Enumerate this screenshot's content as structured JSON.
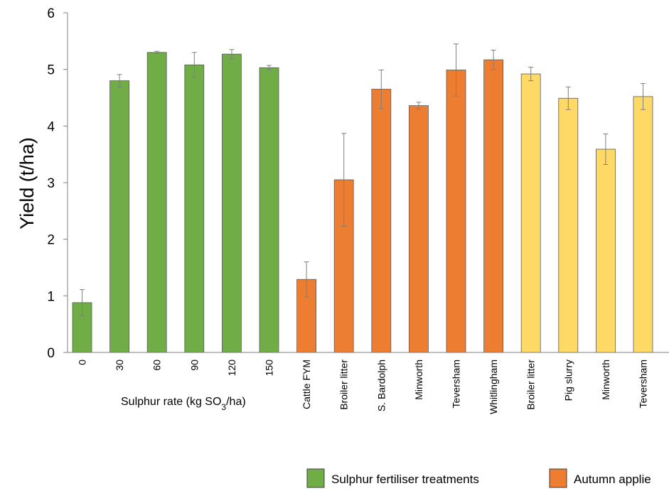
{
  "chart_data": {
    "type": "bar",
    "ylabel": "Yield (t/ha)",
    "xlabel": "",
    "ylim": [
      0,
      6
    ],
    "yticks": [
      "0",
      "1",
      "2",
      "3",
      "4",
      "5",
      "6"
    ],
    "categories": [
      "0",
      "30",
      "60",
      "90",
      "120",
      "150",
      "Cattle FYM",
      "Broiler litter",
      "S. Bardolph",
      "Minworth",
      "Teversham",
      "Whitlingham",
      "Broiler litter",
      "Pig slurry",
      "Minworth",
      "Teversham"
    ],
    "values": [
      0.88,
      4.8,
      5.3,
      5.08,
      5.27,
      5.03,
      1.29,
      3.05,
      4.65,
      4.36,
      4.99,
      5.17,
      4.92,
      4.49,
      3.59,
      4.52
    ],
    "errors": [
      0.23,
      0.11,
      0.02,
      0.22,
      0.08,
      0.04,
      0.31,
      0.82,
      0.34,
      0.06,
      0.46,
      0.17,
      0.12,
      0.2,
      0.27,
      0.23
    ],
    "groups": [
      0,
      0,
      0,
      0,
      0,
      0,
      1,
      1,
      1,
      1,
      1,
      1,
      2,
      2,
      2,
      2
    ],
    "series_colors": [
      "#70ad47",
      "#ed7d31",
      "#ffd966"
    ],
    "group_axis_label": {
      "prefix": "Sulphur rate (kg SO",
      "subscript": "3",
      "suffix": "/ha)"
    },
    "legend": [
      {
        "name": "Sulphur fertiliser treatments",
        "color": "#70ad47"
      },
      {
        "name": "Autumn applie",
        "color": "#ed7d31"
      }
    ],
    "legend_position": "bottom",
    "grid": false
  }
}
